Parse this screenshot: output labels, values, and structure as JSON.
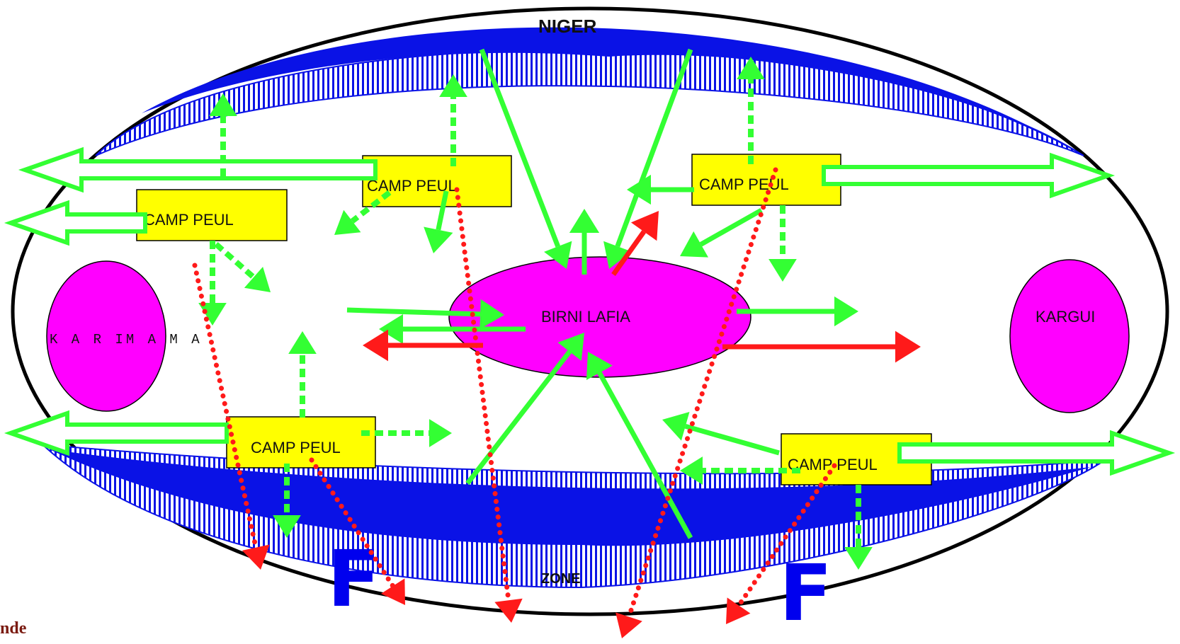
{
  "colors": {
    "river": "#0a12e6",
    "camp_fill": "#ffff00",
    "town_fill": "#ff00ff",
    "flow_green": "#33ff33",
    "flow_red": "#ff1a1a",
    "outline": "#000000",
    "f_mark": "#0000ee"
  },
  "labels": {
    "niger": "NIGER",
    "zone": "ZONE",
    "birni_lafia": "BIRNI LAFIA",
    "kargui": "KARGUI",
    "karimama": "K A R IM A M A",
    "camp": "CAMP PEUL",
    "f_mark": "F",
    "corner_text": "nde"
  },
  "icons": {
    "solid_arrow": "green-solid-arrow-icon",
    "dotted_arrow": "green-dotted-arrow-icon",
    "hollow_arrow": "hollow-green-arrow-icon",
    "red_arrow": "red-arrow-icon",
    "red_dotted_arrow": "red-dotted-arrow-icon"
  }
}
